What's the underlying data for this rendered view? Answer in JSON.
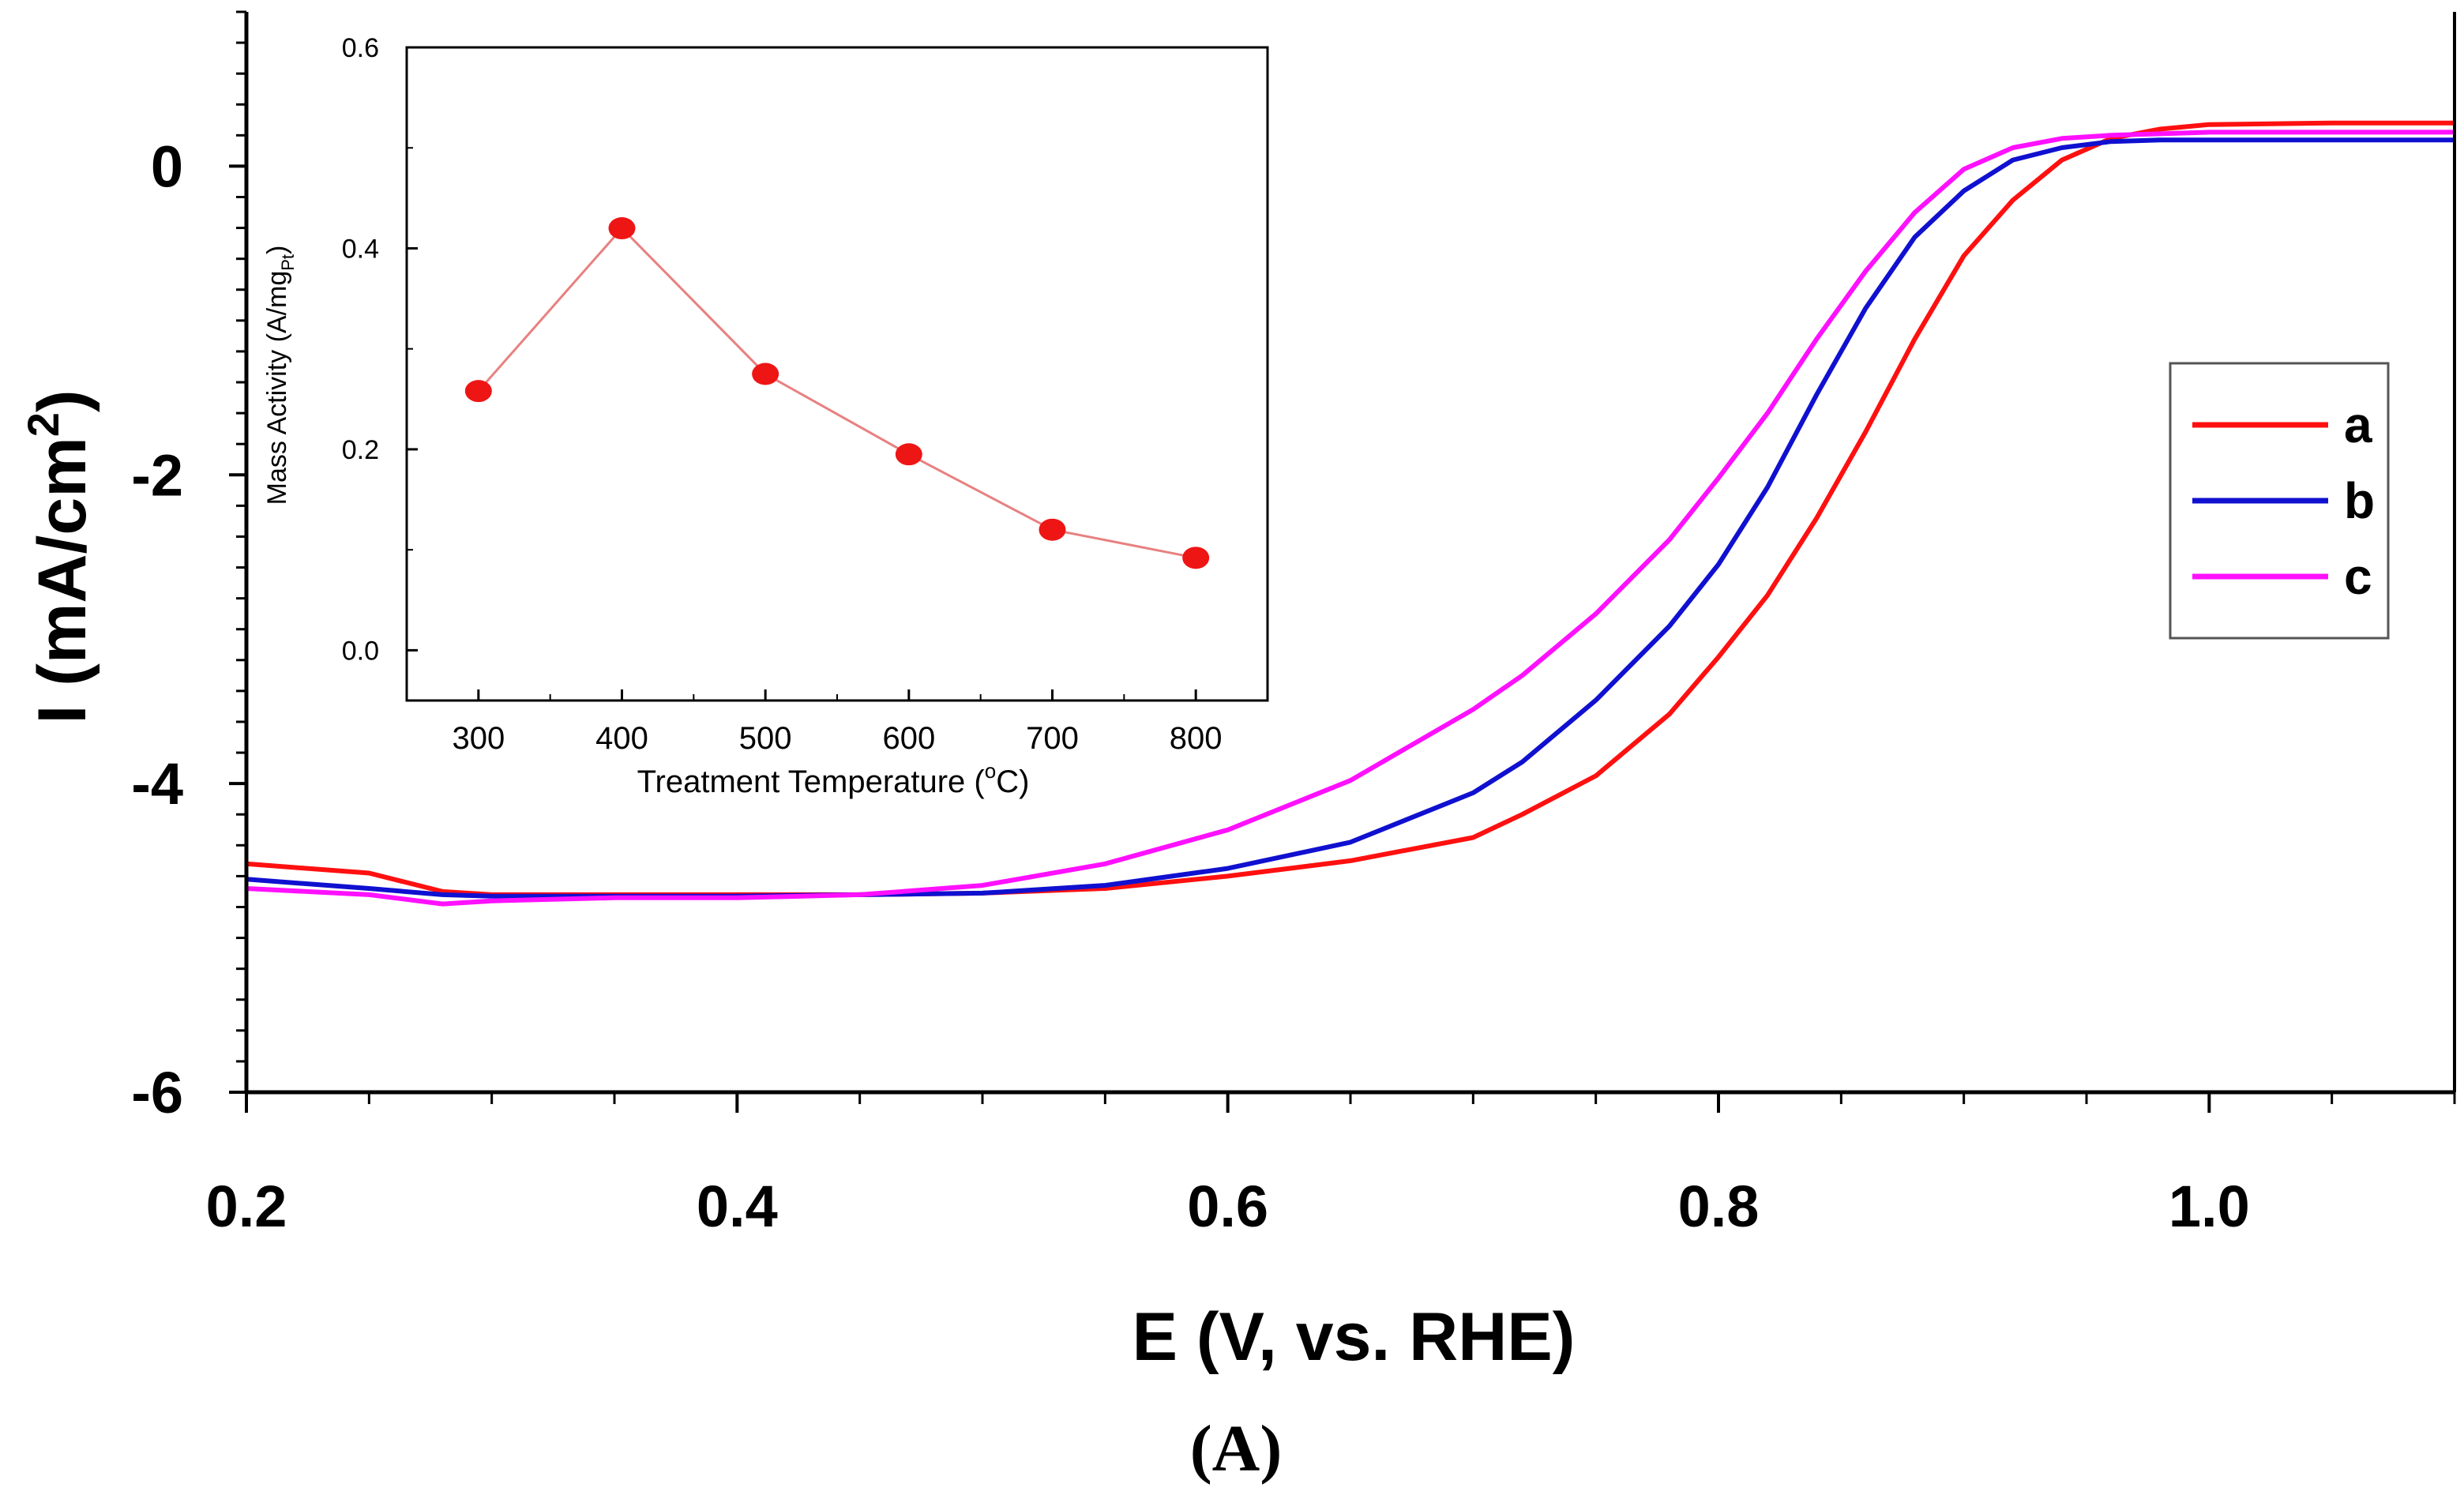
{
  "figure_label": "(A)",
  "colors": {
    "a": "#ff1010",
    "b": "#1010d0",
    "c": "#ff10ff",
    "inset": "#ee1515",
    "inset_line": "#e88080"
  },
  "chart_data": [
    {
      "id": "main",
      "type": "line",
      "title": "",
      "xlabel": "E (V, vs. RHE)",
      "ylabel": "I (mA/cm",
      "ylabel_sup": "2",
      "ylabel_close": ")",
      "xlim": [
        0.2,
        1.1
      ],
      "ylim": [
        -6,
        1
      ],
      "xticks": [
        0.2,
        0.4,
        0.6,
        0.8,
        1.0
      ],
      "xtick_labels": [
        "0.2",
        "0.4",
        "0.6",
        "0.8",
        "1.0"
      ],
      "yticks": [
        -6,
        -4,
        -2,
        0
      ],
      "ytick_labels": [
        "-6",
        "-4",
        "-2",
        "0"
      ],
      "legend": {
        "position": "right",
        "entries": [
          "a",
          "b",
          "c"
        ]
      },
      "series": [
        {
          "name": "a",
          "x": [
            0.2,
            0.25,
            0.28,
            0.3,
            0.35,
            0.4,
            0.45,
            0.5,
            0.55,
            0.6,
            0.65,
            0.7,
            0.72,
            0.75,
            0.78,
            0.8,
            0.82,
            0.84,
            0.86,
            0.88,
            0.9,
            0.92,
            0.94,
            0.96,
            0.98,
            1.0,
            1.05,
            1.1
          ],
          "y": [
            -4.52,
            -4.58,
            -4.7,
            -4.72,
            -4.72,
            -4.72,
            -4.72,
            -4.71,
            -4.68,
            -4.6,
            -4.5,
            -4.35,
            -4.2,
            -3.95,
            -3.55,
            -3.18,
            -2.78,
            -2.28,
            -1.72,
            -1.12,
            -0.58,
            -0.22,
            0.04,
            0.18,
            0.24,
            0.27,
            0.28,
            0.28
          ]
        },
        {
          "name": "b",
          "x": [
            0.2,
            0.25,
            0.28,
            0.3,
            0.35,
            0.4,
            0.45,
            0.5,
            0.55,
            0.6,
            0.65,
            0.7,
            0.72,
            0.75,
            0.78,
            0.8,
            0.82,
            0.84,
            0.86,
            0.88,
            0.9,
            0.92,
            0.94,
            0.96,
            0.98,
            1.0,
            1.05,
            1.1
          ],
          "y": [
            -4.62,
            -4.68,
            -4.72,
            -4.73,
            -4.73,
            -4.73,
            -4.72,
            -4.71,
            -4.66,
            -4.55,
            -4.38,
            -4.06,
            -3.86,
            -3.46,
            -2.98,
            -2.58,
            -2.08,
            -1.48,
            -0.92,
            -0.46,
            -0.16,
            0.04,
            0.12,
            0.16,
            0.17,
            0.17,
            0.17,
            0.17
          ]
        },
        {
          "name": "c",
          "x": [
            0.2,
            0.25,
            0.28,
            0.3,
            0.35,
            0.4,
            0.45,
            0.5,
            0.55,
            0.6,
            0.65,
            0.7,
            0.72,
            0.75,
            0.78,
            0.8,
            0.82,
            0.84,
            0.86,
            0.88,
            0.9,
            0.92,
            0.94,
            0.96,
            0.98,
            1.0,
            1.05,
            1.1
          ],
          "y": [
            -4.68,
            -4.72,
            -4.78,
            -4.76,
            -4.74,
            -4.74,
            -4.72,
            -4.66,
            -4.52,
            -4.3,
            -3.98,
            -3.52,
            -3.3,
            -2.9,
            -2.42,
            -2.02,
            -1.6,
            -1.12,
            -0.68,
            -0.3,
            -0.02,
            0.12,
            0.18,
            0.2,
            0.21,
            0.22,
            0.22,
            0.22
          ]
        }
      ]
    },
    {
      "id": "inset",
      "type": "line",
      "markers": true,
      "title": "",
      "xlabel": "Treatment Temperature (",
      "xlabel_deg": "o",
      "xlabel_end": "C)",
      "ylabel": "Mass Activity (A/mg",
      "ylabel_sub": "Pt",
      "ylabel_close": ")",
      "xlim": [
        250,
        850
      ],
      "ylim": [
        -0.05,
        0.6
      ],
      "xticks": [
        300,
        400,
        500,
        600,
        700,
        800
      ],
      "xtick_labels": [
        "300",
        "400",
        "500",
        "600",
        "700",
        "800"
      ],
      "yticks": [
        0.0,
        0.2,
        0.4,
        0.6
      ],
      "ytick_labels": [
        "0.0",
        "0.2",
        "0.4",
        "0.6"
      ],
      "x": [
        300,
        400,
        500,
        600,
        700,
        800
      ],
      "y": [
        0.258,
        0.42,
        0.275,
        0.195,
        0.12,
        0.092
      ]
    }
  ]
}
